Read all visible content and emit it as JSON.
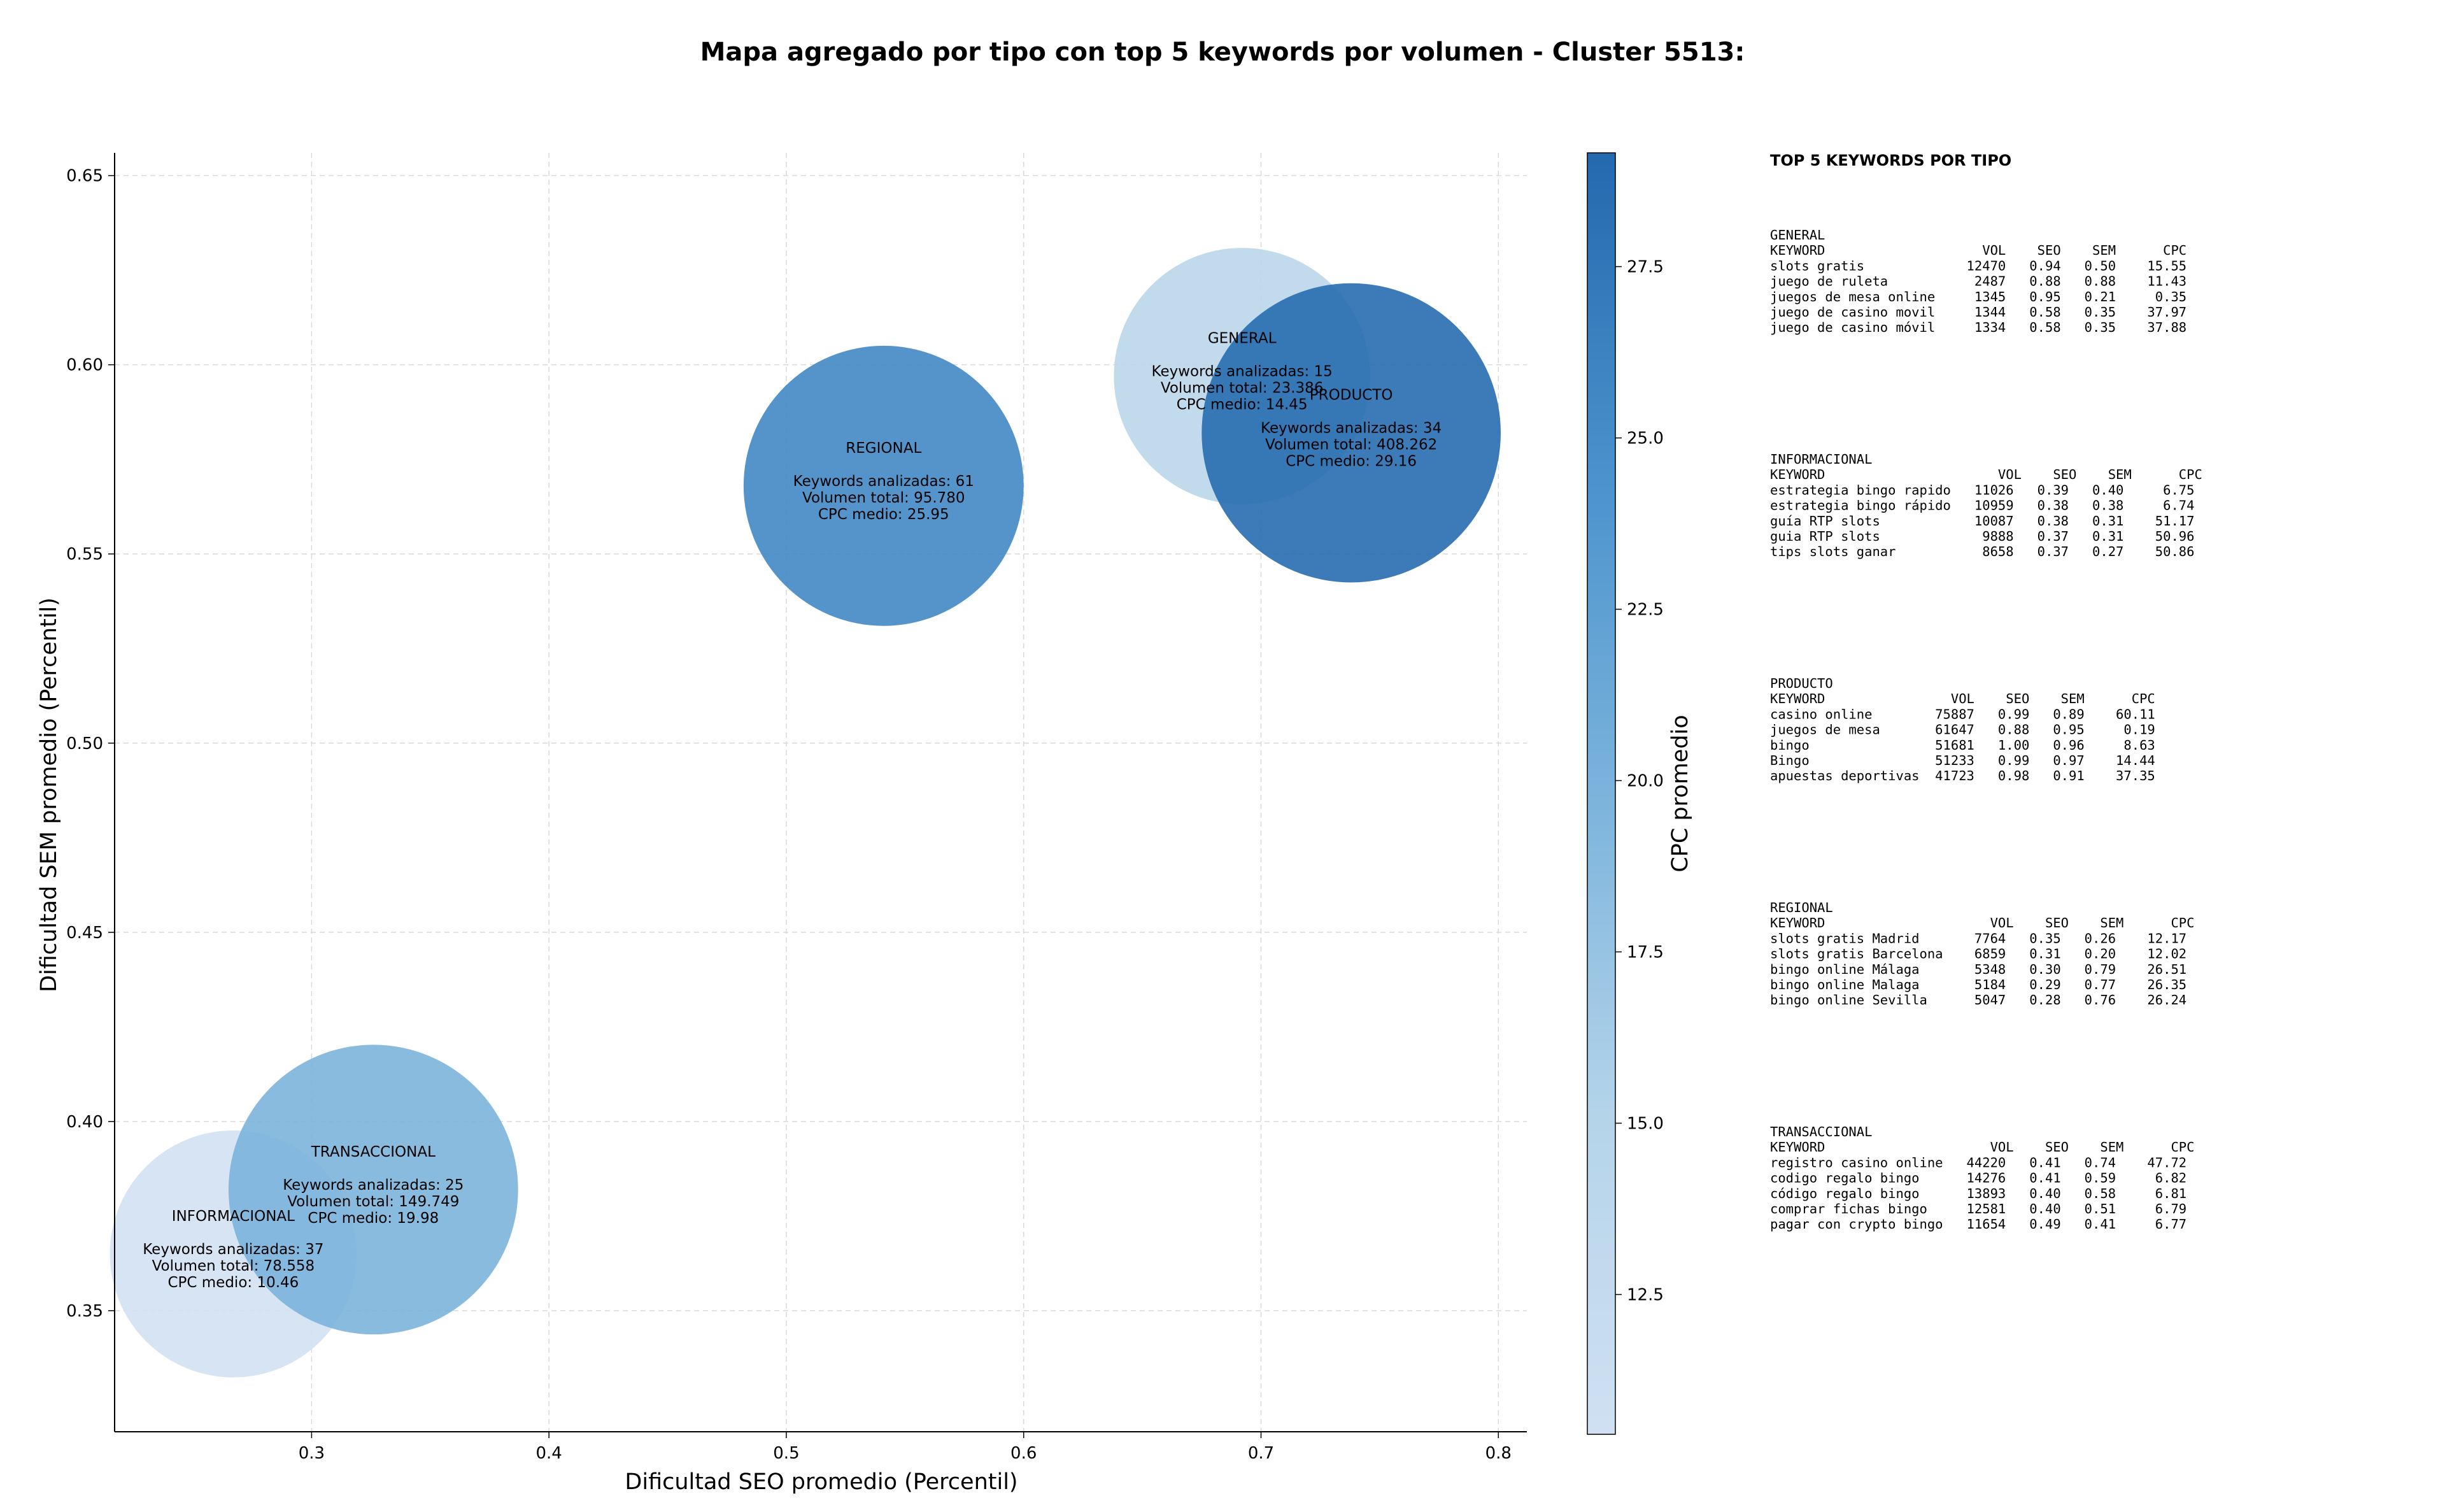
{
  "chart_data": {
    "type": "scatter",
    "title": "Mapa agregado por tipo con top 5 keywords por volumen - Cluster 5513:",
    "xlabel": "Dificultad SEO promedio (Percentil)",
    "ylabel": "Dificultad SEM promedio (Percentil)",
    "xlim": [
      0.217,
      0.812
    ],
    "ylim": [
      0.318,
      0.656
    ],
    "xticks": [
      "0.3",
      "0.4",
      "0.5",
      "0.6",
      "0.7",
      "0.8"
    ],
    "yticks": [
      "0.35",
      "0.40",
      "0.45",
      "0.50",
      "0.55",
      "0.60",
      "0.65"
    ],
    "grid": true,
    "colorbar": {
      "label": "CPC promedio",
      "range": [
        10.46,
        29.16
      ],
      "ticks": [
        "12.5",
        "15.0",
        "17.5",
        "20.0",
        "22.5",
        "25.0",
        "27.5"
      ],
      "colormap_low": "#d0e0f2",
      "colormap_high": "#2269ae"
    },
    "bubbles": [
      {
        "name": "GENERAL",
        "x": 0.692,
        "y": 0.597,
        "cpc": 14.45,
        "radius_x": 0.054,
        "line1": "Keywords analizadas: 15",
        "line2": "Volumen total: 23.386",
        "line3": "CPC medio: 14.45"
      },
      {
        "name": "INFORMACIONAL",
        "x": 0.267,
        "y": 0.365,
        "cpc": 10.46,
        "radius_x": 0.052,
        "line1": "Keywords analizadas: 37",
        "line2": "Volumen total: 78.558",
        "line3": "CPC medio: 10.46"
      },
      {
        "name": "TRANSACCIONAL",
        "x": 0.326,
        "y": 0.382,
        "cpc": 19.98,
        "radius_x": 0.061,
        "line1": "Keywords analizadas: 25",
        "line2": "Volumen total: 149.749",
        "line3": "CPC medio: 19.98"
      },
      {
        "name": "REGIONAL",
        "x": 0.541,
        "y": 0.568,
        "cpc": 25.95,
        "radius_x": 0.059,
        "line1": "Keywords analizadas: 61",
        "line2": "Volumen total: 95.780",
        "line3": "CPC medio: 25.95"
      },
      {
        "name": "PRODUCTO",
        "x": 0.738,
        "y": 0.582,
        "cpc": 29.16,
        "radius_x": 0.063,
        "line1": "Keywords analizadas: 34",
        "line2": "Volumen total: 408.262",
        "line3": "CPC medio: 29.16"
      }
    ]
  },
  "side_panel": {
    "title": "TOP 5 KEYWORDS POR TIPO",
    "tables": [
      {
        "type": "GENERAL",
        "header": "KEYWORD                    VOL    SEO    SEM      CPC",
        "rows": [
          "slots gratis             12470   0.94   0.50    15.55",
          "juego de ruleta           2487   0.88   0.88    11.43",
          "juegos de mesa online     1345   0.95   0.21     0.35",
          "juego de casino movil     1344   0.58   0.35    37.97",
          "juego de casino móvil     1334   0.58   0.35    37.88"
        ]
      },
      {
        "type": "INFORMACIONAL",
        "header": "KEYWORD                      VOL    SEO    SEM      CPC",
        "rows": [
          "estrategia bingo rapido   11026   0.39   0.40     6.75",
          "estrategia bingo rápido   10959   0.38   0.38     6.74",
          "guía RTP slots            10087   0.38   0.31    51.17",
          "guia RTP slots             9888   0.37   0.31    50.96",
          "tips slots ganar           8658   0.37   0.27    50.86"
        ]
      },
      {
        "type": "PRODUCTO",
        "header": "KEYWORD                VOL    SEO    SEM      CPC",
        "rows": [
          "casino online        75887   0.99   0.89    60.11",
          "juegos de mesa       61647   0.88   0.95     0.19",
          "bingo                51681   1.00   0.96     8.63",
          "Bingo                51233   0.99   0.97    14.44",
          "apuestas deportivas  41723   0.98   0.91    37.35"
        ]
      },
      {
        "type": "REGIONAL",
        "header": "KEYWORD                     VOL    SEO    SEM      CPC",
        "rows": [
          "slots gratis Madrid       7764   0.35   0.26    12.17",
          "slots gratis Barcelona    6859   0.31   0.20    12.02",
          "bingo online Málaga       5348   0.30   0.79    26.51",
          "bingo online Malaga       5184   0.29   0.77    26.35",
          "bingo online Sevilla      5047   0.28   0.76    26.24"
        ]
      },
      {
        "type": "TRANSACCIONAL",
        "header": "KEYWORD                     VOL    SEO    SEM      CPC",
        "rows": [
          "registro casino online   44220   0.41   0.74    47.72",
          "codigo regalo bingo      14276   0.41   0.59     6.82",
          "código regalo bingo      13893   0.40   0.58     6.81",
          "comprar fichas bingo     12581   0.40   0.51     6.79",
          "pagar con crypto bingo   11654   0.49   0.41     6.77"
        ]
      }
    ]
  }
}
